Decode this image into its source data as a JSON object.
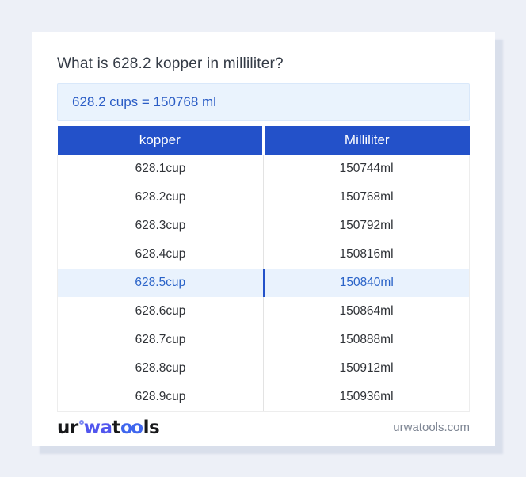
{
  "page": {
    "title": "What is 628.2 kopper in milliliter?"
  },
  "result_box": {
    "text": "628.2 cups = 150768 ml"
  },
  "conversion_table": {
    "headers": [
      "kopper",
      "Milliliter"
    ],
    "highlighted_row_index": 4,
    "rows": [
      [
        "628.1cup",
        "150744ml"
      ],
      [
        "628.2cup",
        "150768ml"
      ],
      [
        "628.3cup",
        "150792ml"
      ],
      [
        "628.4cup",
        "150816ml"
      ],
      [
        "628.5cup",
        "150840ml"
      ],
      [
        "628.6cup",
        "150864ml"
      ],
      [
        "628.7cup",
        "150888ml"
      ],
      [
        "628.8cup",
        "150912ml"
      ],
      [
        "628.9cup",
        "150936ml"
      ]
    ]
  },
  "footer": {
    "logo_segments": {
      "seg1": "ur",
      "seg2": "wa",
      "seg3": "t",
      "seg4": "oo",
      "seg5": "ls"
    },
    "website": "urwatools.com"
  },
  "colors": {
    "page_background": "#edf0f7",
    "header_blue": "#2351c9",
    "accent_text_blue": "#2a5cc5",
    "highlight_row_bg": "#e9f2fd",
    "result_box_bg": "#eaf3fd",
    "logo_indigo": "#5156ee",
    "logo_blue": "#3f66ee",
    "footer_text_gray": "#7d8593"
  }
}
